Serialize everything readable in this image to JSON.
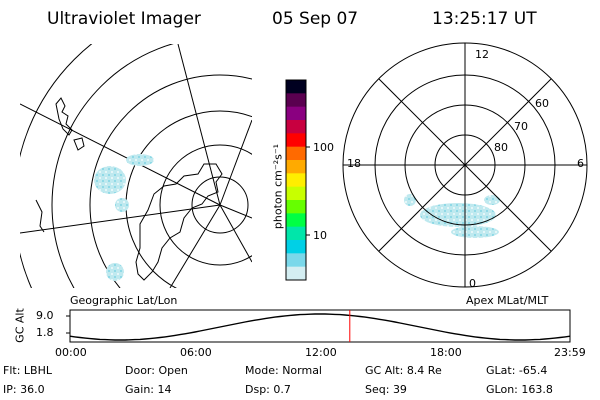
{
  "header": {
    "title": "Ultraviolet Imager",
    "date": "05 Sep 07",
    "time": "13:25:17 UT"
  },
  "left_panel": {
    "caption": "Geographic Lat/Lon"
  },
  "colorbar": {
    "unit_label": "photon cm⁻²s⁻¹",
    "ticks": [
      "100",
      "10"
    ],
    "colors": [
      "#000020",
      "#5a0050",
      "#8a0080",
      "#c80040",
      "#ff0000",
      "#ff6a00",
      "#ffaa00",
      "#ffee00",
      "#c8ff00",
      "#66ff00",
      "#00ff44",
      "#00e6aa",
      "#00d0e6",
      "#7ad8ea",
      "#d4eef2"
    ]
  },
  "right_panel": {
    "caption": "Apex MLat/MLT",
    "mlt_labels": {
      "top": "12",
      "left": "18",
      "right": "6",
      "bottom": "0"
    },
    "lat_labels": [
      "60",
      "70",
      "80"
    ]
  },
  "altitude_plot": {
    "ylabel": "GC Alt",
    "y_ticks": [
      "9.0",
      "1.8"
    ],
    "x_ticks": [
      "00:00",
      "06:00",
      "12:00",
      "18:00",
      "23:59"
    ],
    "marker_time": "13:25:17",
    "line_color": "#000000",
    "marker_color": "#ff0000"
  },
  "footer": {
    "row1": [
      {
        "label": "Flt: ",
        "value": "LBHL"
      },
      {
        "label": "Door: ",
        "value": "Open"
      },
      {
        "label": "Mode: ",
        "value": "Normal"
      },
      {
        "label": "GC Alt: ",
        "value": "8.4 Re"
      },
      {
        "label": "GLat: ",
        "value": "-65.4"
      }
    ],
    "row2": [
      {
        "label": "IP: ",
        "value": "36.0"
      },
      {
        "label": "Gain: ",
        "value": "14"
      },
      {
        "label": "Dsp: ",
        "value": "0.7"
      },
      {
        "label": "Seq: ",
        "value": "39"
      },
      {
        "label": "GLon: ",
        "value": "163.8"
      }
    ]
  }
}
